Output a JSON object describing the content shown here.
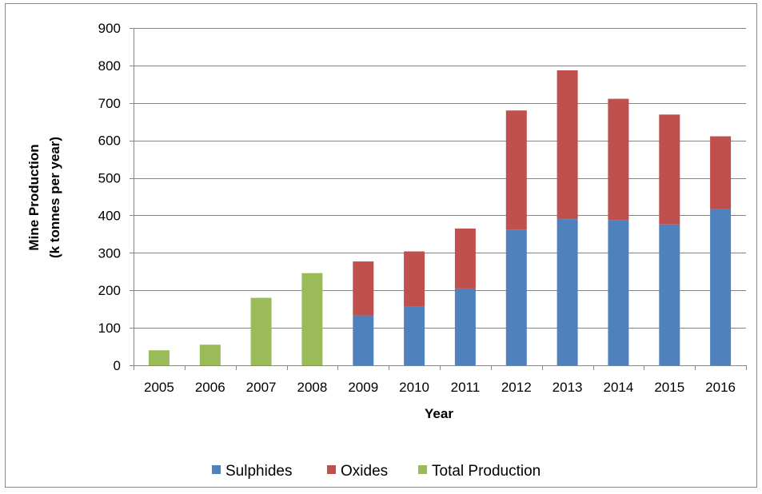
{
  "chart_data": {
    "type": "bar",
    "stacked": true,
    "title": "",
    "xlabel": "Year",
    "ylabel_lines": [
      "Mine Production",
      "(k tonnes per year)"
    ],
    "ylim": [
      0,
      900
    ],
    "yticks": [
      0,
      100,
      200,
      300,
      400,
      500,
      600,
      700,
      800,
      900
    ],
    "grid": true,
    "legend_position": "bottom",
    "categories": [
      "2005",
      "2006",
      "2007",
      "2008",
      "2009",
      "2010",
      "2011",
      "2012",
      "2013",
      "2014",
      "2015",
      "2016"
    ],
    "series": [
      {
        "name": "Sulphides",
        "color": "#4f81bd",
        "values": [
          0,
          0,
          0,
          0,
          133,
          157,
          205,
          362,
          390,
          388,
          376,
          416
        ]
      },
      {
        "name": "Oxides",
        "color": "#c0504d",
        "values": [
          0,
          0,
          0,
          0,
          144,
          147,
          160,
          318,
          397,
          323,
          293,
          195
        ]
      },
      {
        "name": "Total Production",
        "color": "#9bbb59",
        "values": [
          40,
          55,
          180,
          246,
          0,
          0,
          0,
          0,
          0,
          0,
          0,
          0
        ]
      }
    ]
  }
}
